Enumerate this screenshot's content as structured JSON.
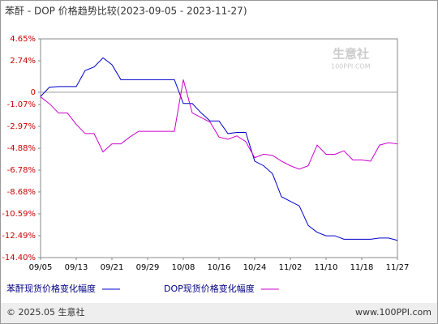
{
  "chart_data": {
    "type": "line",
    "title": "苯酐 - DOP 价格趋势比较(2023-09-05 - 2023-11-27)",
    "categories": [
      "09/05",
      null,
      null,
      null,
      "09/13",
      null,
      null,
      null,
      "09/21",
      null,
      null,
      null,
      "09/29",
      null,
      null,
      null,
      "10/08",
      null,
      null,
      null,
      "10/16",
      null,
      null,
      null,
      "10/24",
      null,
      null,
      null,
      "11/02",
      null,
      null,
      null,
      "11/10",
      null,
      null,
      null,
      "11/18",
      null,
      null,
      null,
      "11/27"
    ],
    "series": [
      {
        "name": "苯酐现货价格变化幅度",
        "color": "#0000cc",
        "values": [
          -0.37,
          0.44,
          0.5,
          0.5,
          0.5,
          1.9,
          2.2,
          3.0,
          2.4,
          1.1,
          1.1,
          1.1,
          1.1,
          1.1,
          1.1,
          1.1,
          -0.98,
          -0.98,
          -1.8,
          -2.5,
          -2.5,
          -3.6,
          -3.5,
          -3.5,
          -6.0,
          -6.4,
          -7.1,
          -9.1,
          -9.5,
          -9.9,
          -11.6,
          -12.2,
          -12.5,
          -12.5,
          -12.8,
          -12.8,
          -12.8,
          -12.8,
          -12.7,
          -12.7,
          -12.9
        ]
      },
      {
        "name": "DOP现货价格变化幅度",
        "color": "#cc00cc",
        "values": [
          -0.4,
          -1.0,
          -1.8,
          -1.8,
          -2.8,
          -3.6,
          -3.6,
          -5.2,
          -4.5,
          -4.5,
          -3.9,
          -3.4,
          -3.4,
          -3.4,
          -3.4,
          -3.4,
          1.1,
          -1.8,
          -2.2,
          -2.6,
          -3.9,
          -4.1,
          -3.8,
          -4.3,
          -5.7,
          -5.4,
          -5.5,
          -6.0,
          -6.4,
          -6.7,
          -6.4,
          -4.6,
          -5.4,
          -5.4,
          -5.1,
          -5.9,
          -5.9,
          -6.0,
          -4.6,
          -4.4,
          -4.5
        ]
      }
    ],
    "ylim": [
      -14.4,
      4.65
    ],
    "yticks": [
      {
        "value": 4.65,
        "label": "4.65%"
      },
      {
        "value": 2.74,
        "label": "2.74%"
      },
      0,
      {
        "value": -1.07,
        "label": "-1.07%"
      },
      {
        "value": -2.97,
        "label": "-2.97%"
      },
      {
        "value": -4.88,
        "label": "-4.88%"
      },
      {
        "value": -6.78,
        "label": "-6.78%"
      },
      {
        "value": -8.68,
        "label": "-8.68%"
      },
      {
        "value": -10.59,
        "label": "-10.59%"
      },
      {
        "value": -12.49,
        "label": "-12.49%"
      },
      {
        "value": -14.4,
        "label": "-14.40%"
      }
    ],
    "grid": false,
    "zero_line": true,
    "legend": "bottom",
    "watermark": "生意社",
    "watermark_url": "100PPI.COM",
    "footer_left": "© 2025.05 生意社",
    "footer_right": "www.100PPI.com"
  }
}
